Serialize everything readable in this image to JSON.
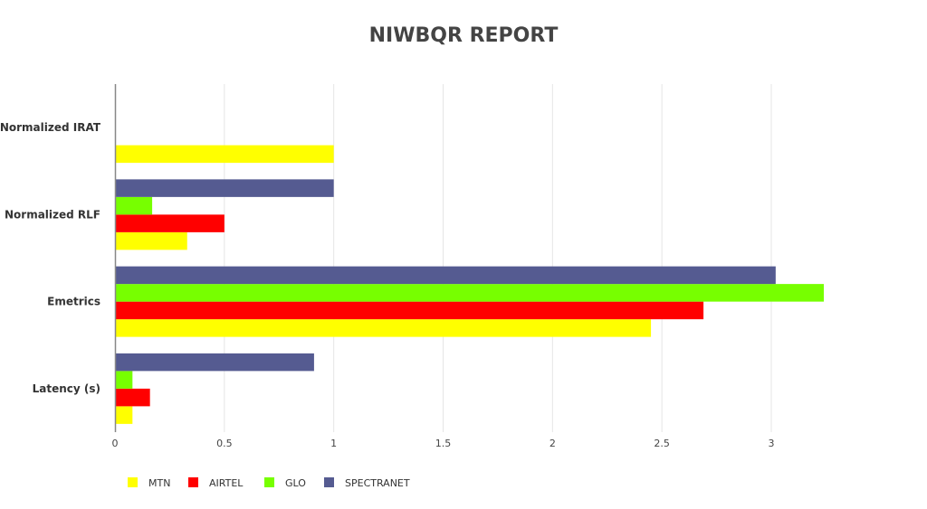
{
  "chart_data": {
    "type": "bar",
    "orientation": "horizontal",
    "title": "NIWBQR REPORT",
    "categories": [
      "Latency (s)",
      "Emetrics",
      "Normalized RLF",
      "Normalized IRAT"
    ],
    "series": [
      {
        "name": "MTN",
        "color": "#ffff00",
        "values": [
          0.08,
          2.45,
          0.33,
          1.0
        ]
      },
      {
        "name": "AIRTEL",
        "color": "#ff0000",
        "values": [
          0.16,
          2.69,
          0.5,
          0
        ]
      },
      {
        "name": "GLO",
        "color": "#77ff00",
        "values": [
          0.08,
          3.24,
          0.17,
          0
        ]
      },
      {
        "name": "SPECTRANET",
        "color": "#555b91",
        "values": [
          0.91,
          3.02,
          1.0,
          0
        ]
      }
    ],
    "x_ticks": [
      "0",
      "0.5",
      "1",
      "1.5",
      "2",
      "2.5",
      "3"
    ],
    "xlim": [
      0,
      3.5
    ],
    "grid": "vertical",
    "legend_position": "bottom-left"
  }
}
